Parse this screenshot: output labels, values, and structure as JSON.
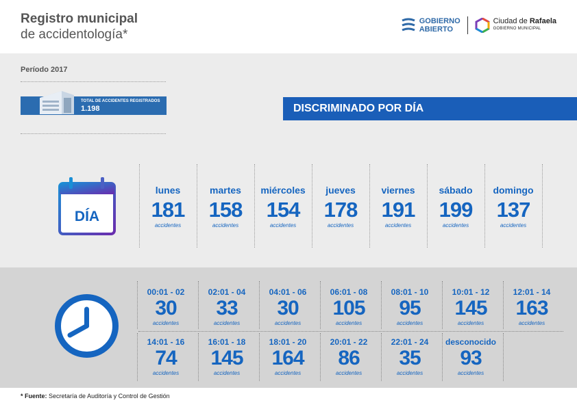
{
  "header": {
    "title_line1": "Registro municipal",
    "title_line2": "de accidentología*",
    "logo1_line1": "GOBIERNO",
    "logo1_line2": "ABIERTO",
    "logo2_prefix": "Ciudad de ",
    "logo2_bold": "Rafaela",
    "logo2_sub": "GOBIERNO MUNICIPAL"
  },
  "period": "Período 2017",
  "total": {
    "label": "TOTAL DE ACCIDENTES REGISTRADOS",
    "value": "1.198"
  },
  "banner": "DISCRIMINADO POR DÍA",
  "calendar_label": "DÍA",
  "days": [
    {
      "name": "lunes",
      "value": "181",
      "unit": "accidentes"
    },
    {
      "name": "martes",
      "value": "158",
      "unit": "accidentes"
    },
    {
      "name": "miércoles",
      "value": "154",
      "unit": "accidentes"
    },
    {
      "name": "jueves",
      "value": "178",
      "unit": "accidentes"
    },
    {
      "name": "viernes",
      "value": "191",
      "unit": "accidentes"
    },
    {
      "name": "sábado",
      "value": "199",
      "unit": "accidentes"
    },
    {
      "name": "domingo",
      "value": "137",
      "unit": "accidentes"
    }
  ],
  "hours": [
    {
      "range": "00:01 - 02",
      "value": "30",
      "unit": "accidentes"
    },
    {
      "range": "02:01 - 04",
      "value": "33",
      "unit": "accidentes"
    },
    {
      "range": "04:01 - 06",
      "value": "30",
      "unit": "accidentes"
    },
    {
      "range": "06:01 - 08",
      "value": "105",
      "unit": "accidentes"
    },
    {
      "range": "08:01 - 10",
      "value": "95",
      "unit": "accidentes"
    },
    {
      "range": "10:01 - 12",
      "value": "145",
      "unit": "accidentes"
    },
    {
      "range": "12:01 - 14",
      "value": "163",
      "unit": "accidentes"
    },
    {
      "range": "14:01 - 16",
      "value": "74",
      "unit": "accidentes"
    },
    {
      "range": "16:01 - 18",
      "value": "145",
      "unit": "accidentes"
    },
    {
      "range": "18:01 - 20",
      "value": "164",
      "unit": "accidentes"
    },
    {
      "range": "20:01 - 22",
      "value": "86",
      "unit": "accidentes"
    },
    {
      "range": "22:01 - 24",
      "value": "35",
      "unit": "accidentes"
    },
    {
      "range": "desconocido",
      "value": "93",
      "unit": "accidentes"
    }
  ],
  "source": {
    "label": "* Fuente:",
    "text": "Secretaría de Auditoría y Control de Gestión"
  },
  "colors": {
    "primary_blue": "#1565c0",
    "banner_blue": "#1a5eb8",
    "section1_bg": "#ececec",
    "section2_bg": "#d4d4d4"
  }
}
